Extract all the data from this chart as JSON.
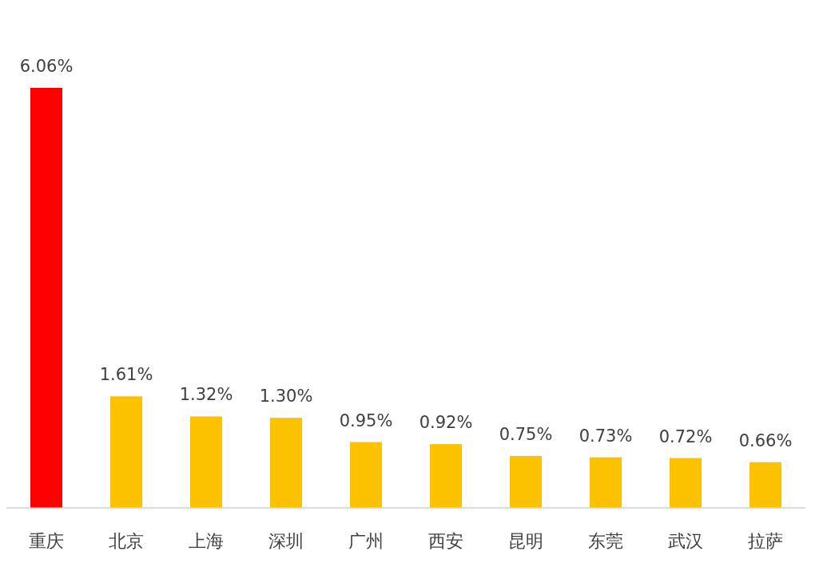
{
  "chart_data": {
    "type": "bar",
    "categories": [
      "重庆",
      "北京",
      "上海",
      "深圳",
      "广州",
      "西安",
      "昆明",
      "东莞",
      "武汉",
      "拉萨"
    ],
    "values": [
      6.06,
      1.61,
      1.32,
      1.3,
      0.95,
      0.92,
      0.75,
      0.73,
      0.72,
      0.66
    ],
    "colors": [
      "#fe0000",
      "#fcc200",
      "#fcc200",
      "#fcc200",
      "#fcc200",
      "#fcc200",
      "#fcc200",
      "#fcc200",
      "#fcc200",
      "#fcc200"
    ],
    "value_labels": [
      "6.06%",
      "1.61%",
      "1.32%",
      "1.30%",
      "0.95%",
      "0.92%",
      "0.75%",
      "0.73%",
      "0.72%",
      "0.66%"
    ]
  }
}
